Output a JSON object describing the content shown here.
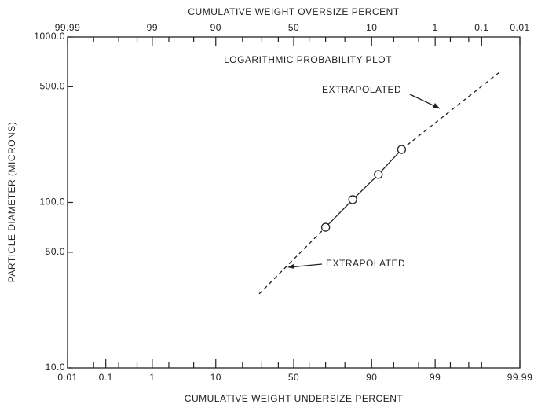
{
  "chart_data": {
    "type": "probability-log",
    "title": "LOGARITHMIC PROBABILITY PLOT",
    "xlabel": "CUMULATIVE WEIGHT UNDERSIZE PERCENT",
    "x2label": "CUMULATIVE WEIGHT OVERSIZE PERCENT",
    "ylabel": "PARTICLE DIAMETER (MICRONS)",
    "xscale": "probability",
    "yscale": "log",
    "xlim": [
      0.01,
      99.99
    ],
    "xticks": [
      0.01,
      0.1,
      1,
      10,
      50,
      90,
      99,
      99.99
    ],
    "xminorticks": [
      0.05,
      0.2,
      0.5,
      2,
      5,
      20,
      30,
      40,
      60,
      70,
      80,
      95,
      98,
      99.5,
      99.8,
      99.9
    ],
    "x2lim": [
      99.99,
      0.01
    ],
    "x2ticks": [
      99.99,
      99,
      90,
      50,
      10,
      1,
      0.1,
      0.01
    ],
    "x2minorticks": [
      99.95,
      99.8,
      99.5,
      98,
      95,
      80,
      70,
      60,
      40,
      30,
      20,
      5,
      2,
      0.5,
      0.2,
      0.1
    ],
    "ylim": [
      10,
      1000
    ],
    "yticks": [
      {
        "value": 10,
        "label": "10.0"
      },
      {
        "value": 50,
        "label": "50.0"
      },
      {
        "value": 100,
        "label": "100.0"
      },
      {
        "value": 500,
        "label": "500.0"
      },
      {
        "value": 1000,
        "label": "1000.0"
      }
    ],
    "series": [
      {
        "x": [
          70,
          83.4,
          91.8,
          96.2
        ],
        "values": [
          70.8,
          104,
          147.6,
          209
        ],
        "color": "#222222"
      }
    ],
    "extrapolated": [
      {
        "x": [
          28.5,
          70
        ],
        "values": [
          28,
          70.8
        ]
      },
      {
        "x": [
          96.2,
          99.964
        ],
        "values": [
          209,
          611
        ]
      }
    ],
    "annotations": [
      "EXTRAPOLATED",
      "EXTRAPOLATED"
    ]
  }
}
